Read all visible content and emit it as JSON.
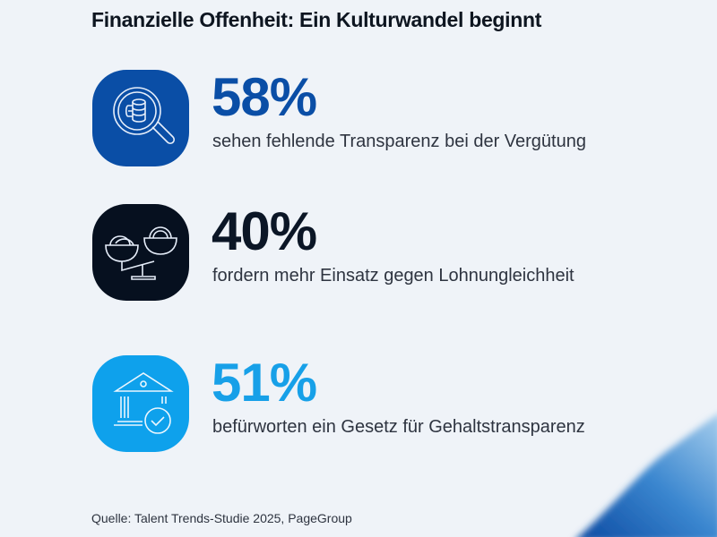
{
  "title": "Finanzielle Offenheit: Ein Kulturwandel beginnt",
  "stats": [
    {
      "value": "58%",
      "text": "sehen fehlende Transparenz bei der Vergütung",
      "icon": "magnifier-coins-icon",
      "color": "#0a4ea6",
      "icon_bg": "#0a4ea6"
    },
    {
      "value": "40%",
      "text": "fordern mehr Einsatz gegen Lohnungleichheit",
      "icon": "scale-coins-icon",
      "color": "#0b1626",
      "icon_bg": "#06101f"
    },
    {
      "value": "51%",
      "text": "befürworten ein Gesetz für Gehaltstransparenz",
      "icon": "bank-check-icon",
      "color": "#17a0e8",
      "icon_bg": "#0ea1ec"
    }
  ],
  "source": "Quelle: Talent Trends-Studie 2025, PageGroup"
}
